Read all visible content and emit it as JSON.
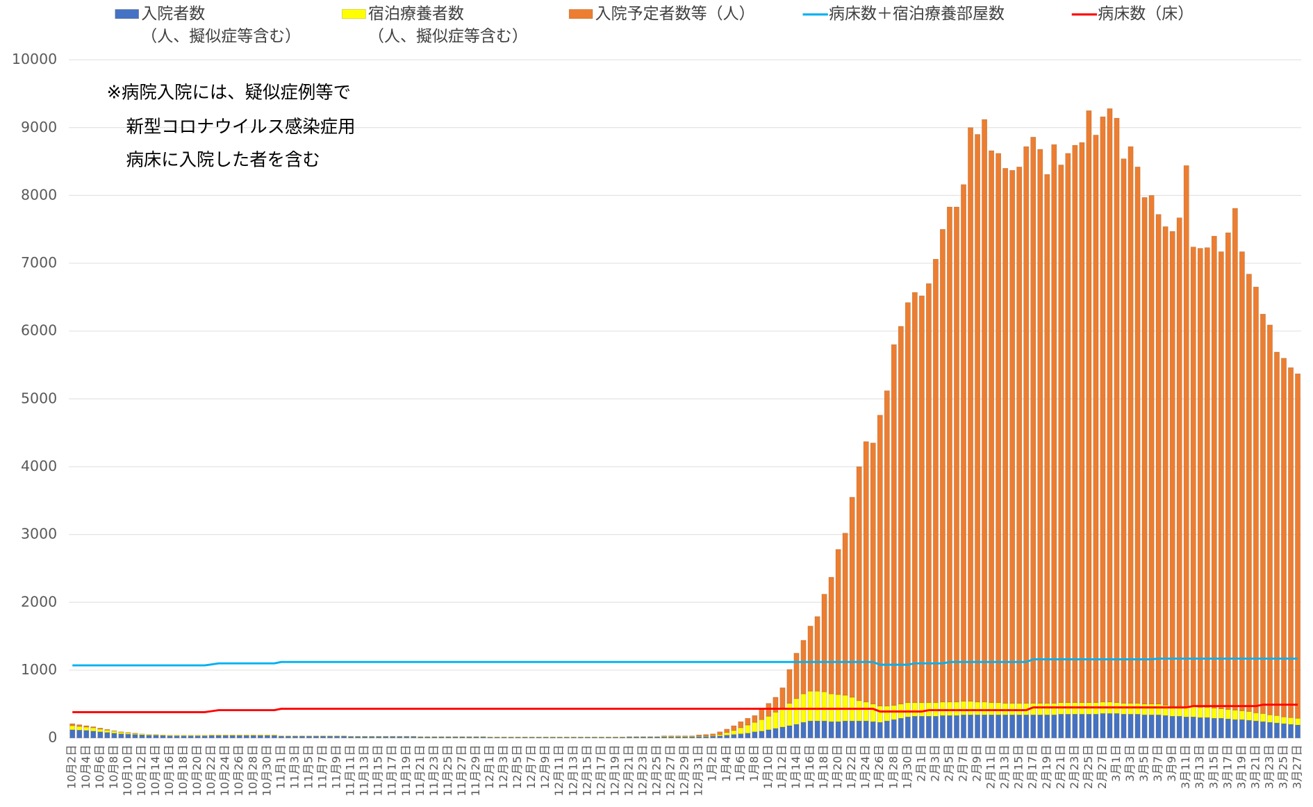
{
  "chart_data": {
    "type": "bar",
    "stacked": true,
    "categories": [
      "10月2日",
      null,
      "10月4日",
      null,
      "10月6日",
      null,
      "10月8日",
      null,
      "10月10日",
      null,
      "10月12日",
      null,
      "10月14日",
      null,
      "10月16日",
      null,
      "10月18日",
      null,
      "10月20日",
      null,
      "10月22日",
      null,
      "10月24日",
      null,
      "10月26日",
      null,
      "10月28日",
      null,
      "10月30日",
      null,
      "11月1日",
      null,
      "11月3日",
      null,
      "11月5日",
      null,
      "11月7日",
      null,
      "11月9日",
      null,
      "11月11日",
      null,
      "11月13日",
      null,
      "11月15日",
      null,
      "11月17日",
      null,
      "11月19日",
      null,
      "11月21日",
      null,
      "11月23日",
      null,
      "11月25日",
      null,
      "11月27日",
      null,
      "11月29日",
      null,
      "12月1日",
      null,
      "12月3日",
      null,
      "12月5日",
      null,
      "12月7日",
      null,
      "12月9日",
      null,
      "12月11日",
      null,
      "12月13日",
      null,
      "12月15日",
      null,
      "12月17日",
      null,
      "12月19日",
      null,
      "12月21日",
      null,
      "12月23日",
      null,
      "12月25日",
      null,
      "12月27日",
      null,
      "12月29日",
      null,
      "12月31日",
      null,
      "1月2日",
      null,
      "1月4日",
      null,
      "1月6日",
      null,
      "1月8日",
      null,
      "1月10日",
      null,
      "1月12日",
      null,
      "1月14日",
      null,
      "1月16日",
      null,
      "1月18日",
      null,
      "1月20日",
      null,
      "1月22日",
      null,
      "1月24日",
      null,
      "1月26日",
      null,
      "1月28日",
      null,
      "1月30日",
      null,
      "2月1日",
      null,
      "2月3日",
      null,
      "2月5日",
      null,
      "2月7日",
      null,
      "2月9日",
      null,
      "2月11日",
      null,
      "2月13日",
      null,
      "2月15日",
      null,
      "2月17日",
      null,
      "2月19日",
      null,
      "2月21日",
      null,
      "2月23日",
      null,
      "2月25日",
      null,
      "2月27日",
      null,
      "3月1日",
      null,
      "3月3日",
      null,
      "3月5日",
      null,
      "3月7日",
      null,
      "3月9日",
      null,
      "3月11日",
      null,
      "3月13日",
      null,
      "3月15日",
      null,
      "3月17日",
      null,
      "3月19日",
      null,
      "3月21日",
      null,
      "3月23日",
      null,
      "3月25日",
      null,
      "3月27日"
    ],
    "series": [
      {
        "name": "入院者数\n（人、擬似症等含む）",
        "kind": "bar",
        "color": "#4472c4",
        "values": [
          120,
          115,
          110,
          100,
          90,
          80,
          70,
          60,
          55,
          50,
          45,
          40,
          40,
          35,
          30,
          30,
          30,
          30,
          30,
          30,
          35,
          35,
          35,
          35,
          35,
          35,
          35,
          35,
          35,
          35,
          25,
          25,
          25,
          25,
          25,
          25,
          25,
          25,
          25,
          25,
          20,
          20,
          20,
          20,
          20,
          20,
          20,
          20,
          20,
          20,
          15,
          15,
          15,
          15,
          15,
          15,
          15,
          15,
          15,
          15,
          10,
          10,
          10,
          10,
          10,
          10,
          10,
          10,
          10,
          10,
          10,
          10,
          10,
          10,
          10,
          10,
          10,
          10,
          10,
          10,
          15,
          15,
          15,
          15,
          15,
          15,
          15,
          15,
          15,
          15,
          20,
          20,
          25,
          30,
          40,
          50,
          60,
          70,
          90,
          100,
          120,
          140,
          160,
          180,
          200,
          230,
          250,
          250,
          250,
          240,
          240,
          250,
          250,
          250,
          250,
          240,
          230,
          250,
          270,
          290,
          310,
          320,
          320,
          320,
          320,
          330,
          330,
          330,
          340,
          340,
          340,
          340,
          340,
          340,
          340,
          340,
          340,
          340,
          340,
          340,
          340,
          340,
          350,
          350,
          350,
          350,
          350,
          350,
          360,
          360,
          360,
          350,
          350,
          350,
          340,
          340,
          340,
          330,
          320,
          320,
          310,
          310,
          300,
          300,
          290,
          290,
          280,
          270,
          270,
          260,
          250,
          240,
          230,
          220,
          210,
          200,
          190
        ]
      },
      {
        "name": "宿泊療養者数\n（人、擬似症等含む）",
        "kind": "bar",
        "color": "#ffff00",
        "values": [
          60,
          55,
          50,
          50,
          40,
          35,
          30,
          25,
          20,
          15,
          15,
          10,
          10,
          10,
          10,
          10,
          10,
          10,
          10,
          10,
          10,
          10,
          10,
          10,
          10,
          10,
          10,
          10,
          10,
          10,
          5,
          5,
          5,
          5,
          5,
          5,
          5,
          5,
          5,
          5,
          5,
          5,
          5,
          5,
          5,
          5,
          5,
          5,
          5,
          5,
          5,
          5,
          5,
          5,
          5,
          5,
          5,
          5,
          5,
          5,
          5,
          5,
          5,
          5,
          5,
          5,
          5,
          5,
          5,
          5,
          5,
          5,
          5,
          5,
          5,
          5,
          5,
          5,
          5,
          5,
          5,
          5,
          5,
          5,
          5,
          10,
          10,
          10,
          10,
          10,
          10,
          10,
          10,
          20,
          40,
          60,
          90,
          120,
          140,
          170,
          200,
          240,
          280,
          330,
          380,
          420,
          440,
          440,
          430,
          410,
          400,
          380,
          350,
          300,
          280,
          260,
          240,
          220,
          210,
          210,
          210,
          200,
          200,
          200,
          200,
          200,
          200,
          200,
          200,
          200,
          190,
          190,
          180,
          180,
          170,
          170,
          170,
          170,
          170,
          170,
          170,
          170,
          170,
          170,
          170,
          170,
          170,
          170,
          170,
          170,
          160,
          160,
          160,
          160,
          160,
          160,
          160,
          150,
          150,
          150,
          150,
          150,
          150,
          150,
          150,
          140,
          140,
          140,
          130,
          130,
          120,
          120,
          110,
          110,
          100,
          100,
          100
        ]
      },
      {
        "name": "入院予定者数等（人）",
        "kind": "bar",
        "color": "#ed7d31",
        "values": [
          30,
          25,
          20,
          15,
          15,
          10,
          5,
          5,
          5,
          5,
          0,
          0,
          0,
          0,
          0,
          0,
          0,
          0,
          0,
          0,
          0,
          0,
          0,
          0,
          0,
          0,
          0,
          0,
          0,
          0,
          0,
          0,
          0,
          0,
          0,
          0,
          0,
          0,
          0,
          0,
          0,
          0,
          0,
          0,
          0,
          0,
          0,
          0,
          0,
          0,
          0,
          0,
          0,
          0,
          0,
          0,
          0,
          0,
          0,
          0,
          0,
          0,
          0,
          0,
          0,
          0,
          0,
          0,
          0,
          0,
          0,
          0,
          0,
          0,
          0,
          0,
          0,
          0,
          0,
          0,
          0,
          0,
          0,
          0,
          0,
          5,
          5,
          5,
          5,
          5,
          15,
          20,
          25,
          40,
          50,
          70,
          90,
          100,
          100,
          150,
          190,
          220,
          300,
          500,
          670,
          790,
          960,
          1100,
          1440,
          1720,
          2140,
          2390,
          2950,
          3450,
          3840,
          3850,
          4290,
          4650,
          5320,
          5570,
          5900,
          6050,
          6000,
          6180,
          6540,
          6970,
          7300,
          7300,
          7620,
          8460,
          8370,
          8590,
          8140,
          8100,
          7890,
          7860,
          7910,
          8210,
          8350,
          8170,
          7800,
          8240,
          7930,
          8100,
          8220,
          8260,
          8730,
          8370,
          8630,
          8750,
          8620,
          8030,
          8210,
          7910,
          7470,
          7500,
          7220,
          7060,
          7000,
          7200,
          7980,
          6780,
          6770,
          6780,
          6960,
          6740,
          7030,
          7400,
          6770,
          6450,
          6280,
          5890,
          5750,
          5360,
          5290,
          5160,
          5080
        ]
      },
      {
        "name": "病床数＋宿泊療養部屋数",
        "kind": "line",
        "color": "#00b0f0",
        "values": [
          1070,
          1070,
          1070,
          1070,
          1070,
          1070,
          1070,
          1070,
          1070,
          1070,
          1070,
          1070,
          1070,
          1070,
          1070,
          1070,
          1070,
          1070,
          1070,
          1070,
          1085,
          1100,
          1100,
          1100,
          1100,
          1100,
          1100,
          1100,
          1100,
          1100,
          1120,
          1120,
          1120,
          1120,
          1120,
          1120,
          1120,
          1120,
          1120,
          1120,
          1120,
          1120,
          1120,
          1120,
          1120,
          1120,
          1120,
          1120,
          1120,
          1120,
          1120,
          1120,
          1120,
          1120,
          1120,
          1120,
          1120,
          1120,
          1120,
          1120,
          1120,
          1120,
          1120,
          1120,
          1120,
          1120,
          1120,
          1120,
          1120,
          1120,
          1120,
          1120,
          1120,
          1120,
          1120,
          1120,
          1120,
          1120,
          1120,
          1120,
          1120,
          1120,
          1120,
          1120,
          1120,
          1120,
          1120,
          1120,
          1120,
          1120,
          1120,
          1120,
          1120,
          1120,
          1120,
          1120,
          1120,
          1120,
          1120,
          1120,
          1120,
          1120,
          1120,
          1120,
          1120,
          1120,
          1120,
          1120,
          1120,
          1120,
          1120,
          1120,
          1120,
          1120,
          1120,
          1120,
          1080,
          1080,
          1080,
          1080,
          1080,
          1100,
          1100,
          1100,
          1100,
          1100,
          1120,
          1120,
          1120,
          1120,
          1120,
          1120,
          1120,
          1120,
          1120,
          1120,
          1120,
          1120,
          1160,
          1160,
          1160,
          1160,
          1160,
          1160,
          1160,
          1160,
          1160,
          1160,
          1160,
          1160,
          1160,
          1160,
          1160,
          1160,
          1160,
          1160,
          1170,
          1170,
          1170,
          1170,
          1170,
          1170,
          1170,
          1170,
          1170,
          1170,
          1170,
          1170,
          1170,
          1170,
          1170,
          1170,
          1170,
          1170,
          1170,
          1170,
          1170
        ]
      },
      {
        "name": "病床数（床）",
        "kind": "line",
        "color": "#ff0000",
        "values": [
          380,
          380,
          380,
          380,
          380,
          380,
          380,
          380,
          380,
          380,
          380,
          380,
          380,
          380,
          380,
          380,
          380,
          380,
          380,
          380,
          395,
          410,
          410,
          410,
          410,
          410,
          410,
          410,
          410,
          410,
          430,
          430,
          430,
          430,
          430,
          430,
          430,
          430,
          430,
          430,
          430,
          430,
          430,
          430,
          430,
          430,
          430,
          430,
          430,
          430,
          430,
          430,
          430,
          430,
          430,
          430,
          430,
          430,
          430,
          430,
          430,
          430,
          430,
          430,
          430,
          430,
          430,
          430,
          430,
          430,
          430,
          430,
          430,
          430,
          430,
          430,
          430,
          430,
          430,
          430,
          430,
          430,
          430,
          430,
          430,
          430,
          430,
          430,
          430,
          430,
          430,
          430,
          430,
          430,
          430,
          430,
          430,
          430,
          430,
          430,
          430,
          430,
          430,
          430,
          430,
          430,
          430,
          430,
          430,
          430,
          430,
          430,
          430,
          430,
          430,
          430,
          390,
          390,
          390,
          390,
          390,
          390,
          390,
          410,
          410,
          410,
          410,
          410,
          410,
          410,
          410,
          410,
          410,
          410,
          410,
          410,
          410,
          410,
          450,
          450,
          450,
          450,
          450,
          450,
          450,
          450,
          450,
          450,
          450,
          450,
          450,
          450,
          450,
          450,
          450,
          450,
          450,
          450,
          450,
          450,
          450,
          470,
          470,
          470,
          470,
          470,
          470,
          470,
          470,
          470,
          470,
          490,
          490,
          490,
          490,
          490,
          490
        ]
      }
    ],
    "ylim": [
      0,
      10000
    ],
    "yticks": [
      0,
      1000,
      2000,
      3000,
      4000,
      5000,
      6000,
      7000,
      8000,
      9000,
      10000
    ],
    "grid": true,
    "legend": "top",
    "annotation": [
      "※病院入院には、疑似症例等で",
      "新型コロナウイルス感染症用",
      "病床に入院した者を含む"
    ]
  }
}
